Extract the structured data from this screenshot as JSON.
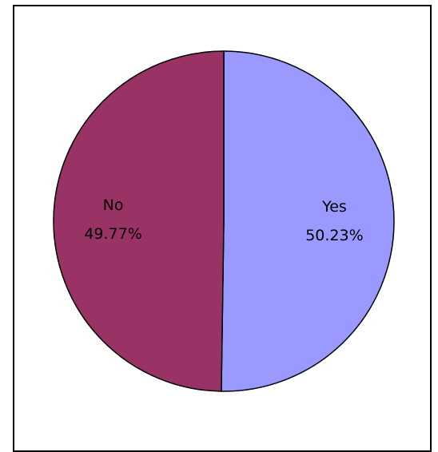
{
  "chart_data": {
    "type": "pie",
    "slices": [
      {
        "label": "Yes",
        "value": 50.23,
        "display": "50.23%",
        "color": "#9999ff"
      },
      {
        "label": "No",
        "value": 49.77,
        "display": "49.77%",
        "color": "#993366"
      }
    ],
    "start_direction": "top",
    "order": "clockwise",
    "outline_color": "#000000",
    "legend": "none"
  }
}
